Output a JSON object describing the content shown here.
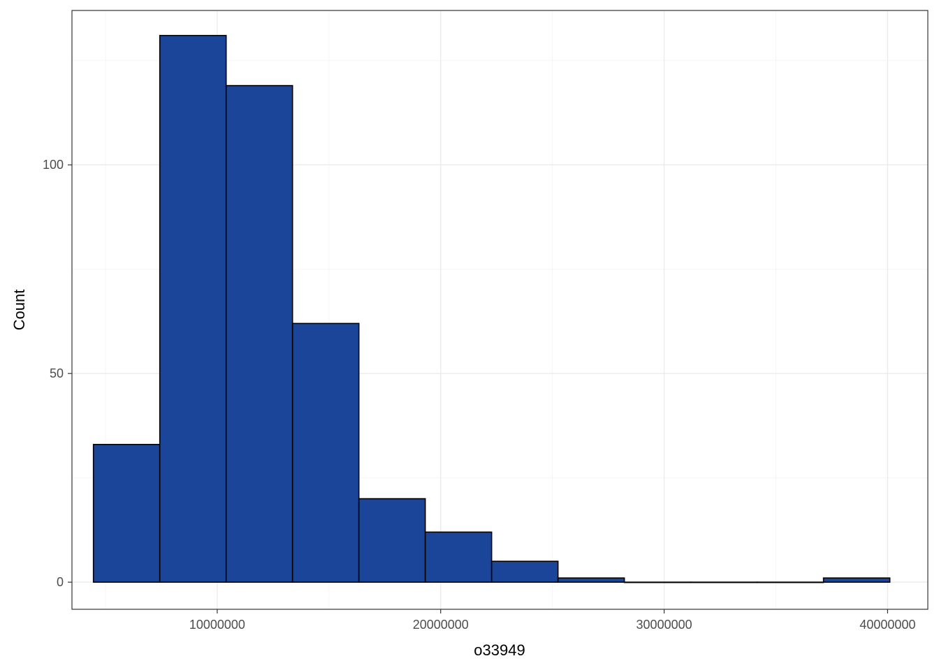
{
  "chart_data": {
    "type": "histogram",
    "title": "",
    "xlabel": "o33949",
    "ylabel": "Count",
    "xlim": [
      3500000,
      41800000
    ],
    "ylim": [
      -6.5,
      137
    ],
    "x_ticks": [
      10000000,
      20000000,
      30000000,
      40000000
    ],
    "x_tick_labels": [
      "10000000",
      "20000000",
      "30000000",
      "40000000"
    ],
    "x_minor_ticks": [
      5000000,
      15000000,
      25000000,
      35000000
    ],
    "y_ticks": [
      0,
      50,
      100
    ],
    "y_tick_labels": [
      "0",
      "50",
      "100"
    ],
    "y_minor_ticks": [
      25,
      75,
      125
    ],
    "bins": [
      {
        "x0": 4460000,
        "x1": 7430000,
        "count": 33
      },
      {
        "x0": 7430000,
        "x1": 10400000,
        "count": 131
      },
      {
        "x0": 10400000,
        "x1": 13370000,
        "count": 119
      },
      {
        "x0": 13370000,
        "x1": 16340000,
        "count": 62
      },
      {
        "x0": 16340000,
        "x1": 19310000,
        "count": 20
      },
      {
        "x0": 19310000,
        "x1": 22280000,
        "count": 12
      },
      {
        "x0": 22280000,
        "x1": 25250000,
        "count": 5
      },
      {
        "x0": 25250000,
        "x1": 28220000,
        "count": 1
      },
      {
        "x0": 28220000,
        "x1": 31190000,
        "count": 0
      },
      {
        "x0": 31190000,
        "x1": 34160000,
        "count": 0
      },
      {
        "x0": 34160000,
        "x1": 37130000,
        "count": 0
      },
      {
        "x0": 37130000,
        "x1": 40100000,
        "count": 1
      }
    ],
    "grid": true,
    "colors": {
      "bar_fill": "#1a4599",
      "bar_stroke": "#000000",
      "grid_major": "#ebebeb",
      "grid_minor": "#f5f5f5",
      "panel_border": "#333333"
    }
  }
}
